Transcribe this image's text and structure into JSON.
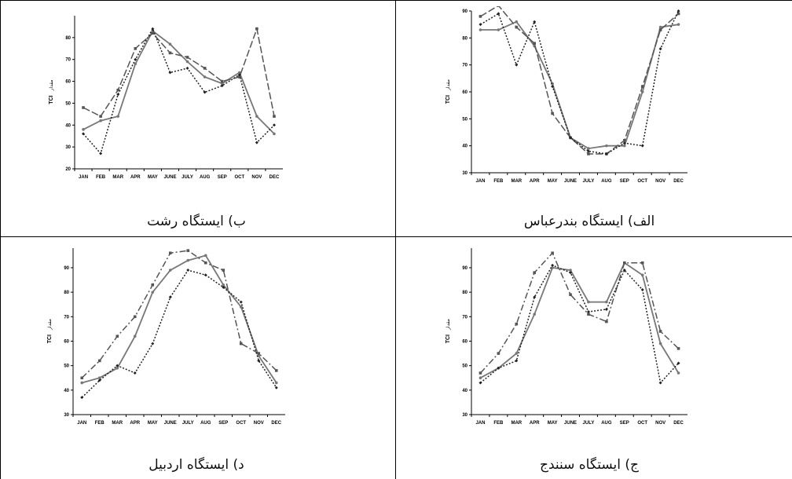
{
  "chart_data": [
    {
      "type": "line",
      "caption": "ب) ایستگاه رشت",
      "ylabel_en": "TCI",
      "ylabel_fa": "مقدار",
      "categories": [
        "JAN",
        "FEB",
        "MAR",
        "APR",
        "MAY",
        "JUNE",
        "JULY",
        "AUG",
        "SEP",
        "OCT",
        "NOV",
        "DEC"
      ],
      "ylim": [
        20,
        90
      ],
      "yticks": [
        20,
        30,
        40,
        50,
        60,
        70,
        80
      ],
      "series": [
        {
          "values": [
            38,
            42,
            44,
            68,
            83,
            77,
            69,
            62,
            59,
            64,
            44,
            36
          ],
          "style": "solid",
          "color": "#777777"
        },
        {
          "values": [
            48,
            44,
            56,
            75,
            82,
            73,
            71,
            66,
            60,
            62,
            84,
            44
          ],
          "style": "longdash",
          "color": "#555555"
        },
        {
          "values": [
            36,
            27,
            54,
            70,
            84,
            64,
            66,
            55,
            58,
            63,
            32,
            40
          ],
          "style": "dotted",
          "color": "#222222"
        }
      ]
    },
    {
      "type": "line",
      "caption": "الف) ایستگاه بندرعباس",
      "ylabel_en": "TCI",
      "ylabel_fa": "مقدار",
      "categories": [
        "JAN",
        "FEB",
        "MAR",
        "APR",
        "MAY",
        "JUNE",
        "JULY",
        "AUG",
        "SEP",
        "OCT",
        "NOV",
        "DEC"
      ],
      "ylim": [
        30,
        90
      ],
      "yticks": [
        30,
        40,
        50,
        60,
        70,
        80,
        90
      ],
      "series": [
        {
          "values": [
            83,
            83,
            86,
            77,
            63,
            43,
            39,
            40,
            40,
            60,
            84,
            85
          ],
          "style": "solid",
          "color": "#777777"
        },
        {
          "values": [
            88,
            92,
            84,
            78,
            52,
            43,
            37,
            37,
            42,
            62,
            83,
            89
          ],
          "style": "longdash",
          "color": "#555555"
        },
        {
          "values": [
            85,
            89,
            70,
            86,
            62,
            43,
            38,
            37,
            41,
            40,
            76,
            90
          ],
          "style": "dotted",
          "color": "#222222"
        }
      ]
    },
    {
      "type": "line",
      "caption": "د) ایستگاه اردبیل",
      "ylabel_en": "TCI",
      "ylabel_fa": "مقدار",
      "categories": [
        "JAN",
        "FEB",
        "MAR",
        "APR",
        "MAY",
        "JUNE",
        "JULY",
        "AUG",
        "SEP",
        "OCT",
        "NOV",
        "DEC"
      ],
      "ylim": [
        30,
        98
      ],
      "yticks": [
        30,
        40,
        50,
        60,
        70,
        80,
        90
      ],
      "series": [
        {
          "values": [
            43,
            45,
            49,
            62,
            80,
            89,
            93,
            95,
            83,
            74,
            54,
            43
          ],
          "style": "solid",
          "color": "#777777"
        },
        {
          "values": [
            45,
            52,
            62,
            70,
            83,
            96,
            97,
            92,
            89,
            59,
            55,
            48
          ],
          "style": "dashdot",
          "color": "#555555"
        },
        {
          "values": [
            37,
            44,
            50,
            47,
            59,
            78,
            89,
            87,
            82,
            76,
            52,
            41
          ],
          "style": "dotted",
          "color": "#222222"
        }
      ]
    },
    {
      "type": "line",
      "caption": "ج) ایستگاه سنندج",
      "ylabel_en": "TCI",
      "ylabel_fa": "مقدار",
      "categories": [
        "JAN",
        "FEB",
        "MAR",
        "APR",
        "MAY",
        "JUNE",
        "JULY",
        "AUG",
        "SEP",
        "OCT",
        "NOV",
        "DEC"
      ],
      "ylim": [
        30,
        98
      ],
      "yticks": [
        30,
        40,
        50,
        60,
        70,
        80,
        90
      ],
      "series": [
        {
          "values": [
            45,
            49,
            55,
            71,
            90,
            89,
            76,
            76,
            92,
            87,
            59,
            47
          ],
          "style": "solid",
          "color": "#777777"
        },
        {
          "values": [
            47,
            55,
            67,
            88,
            96,
            79,
            71,
            68,
            92,
            92,
            64,
            57
          ],
          "style": "dashdot",
          "color": "#555555"
        },
        {
          "values": [
            43,
            49,
            52,
            78,
            91,
            88,
            72,
            73,
            89,
            81,
            43,
            51
          ],
          "style": "dotted",
          "color": "#222222"
        }
      ]
    }
  ]
}
